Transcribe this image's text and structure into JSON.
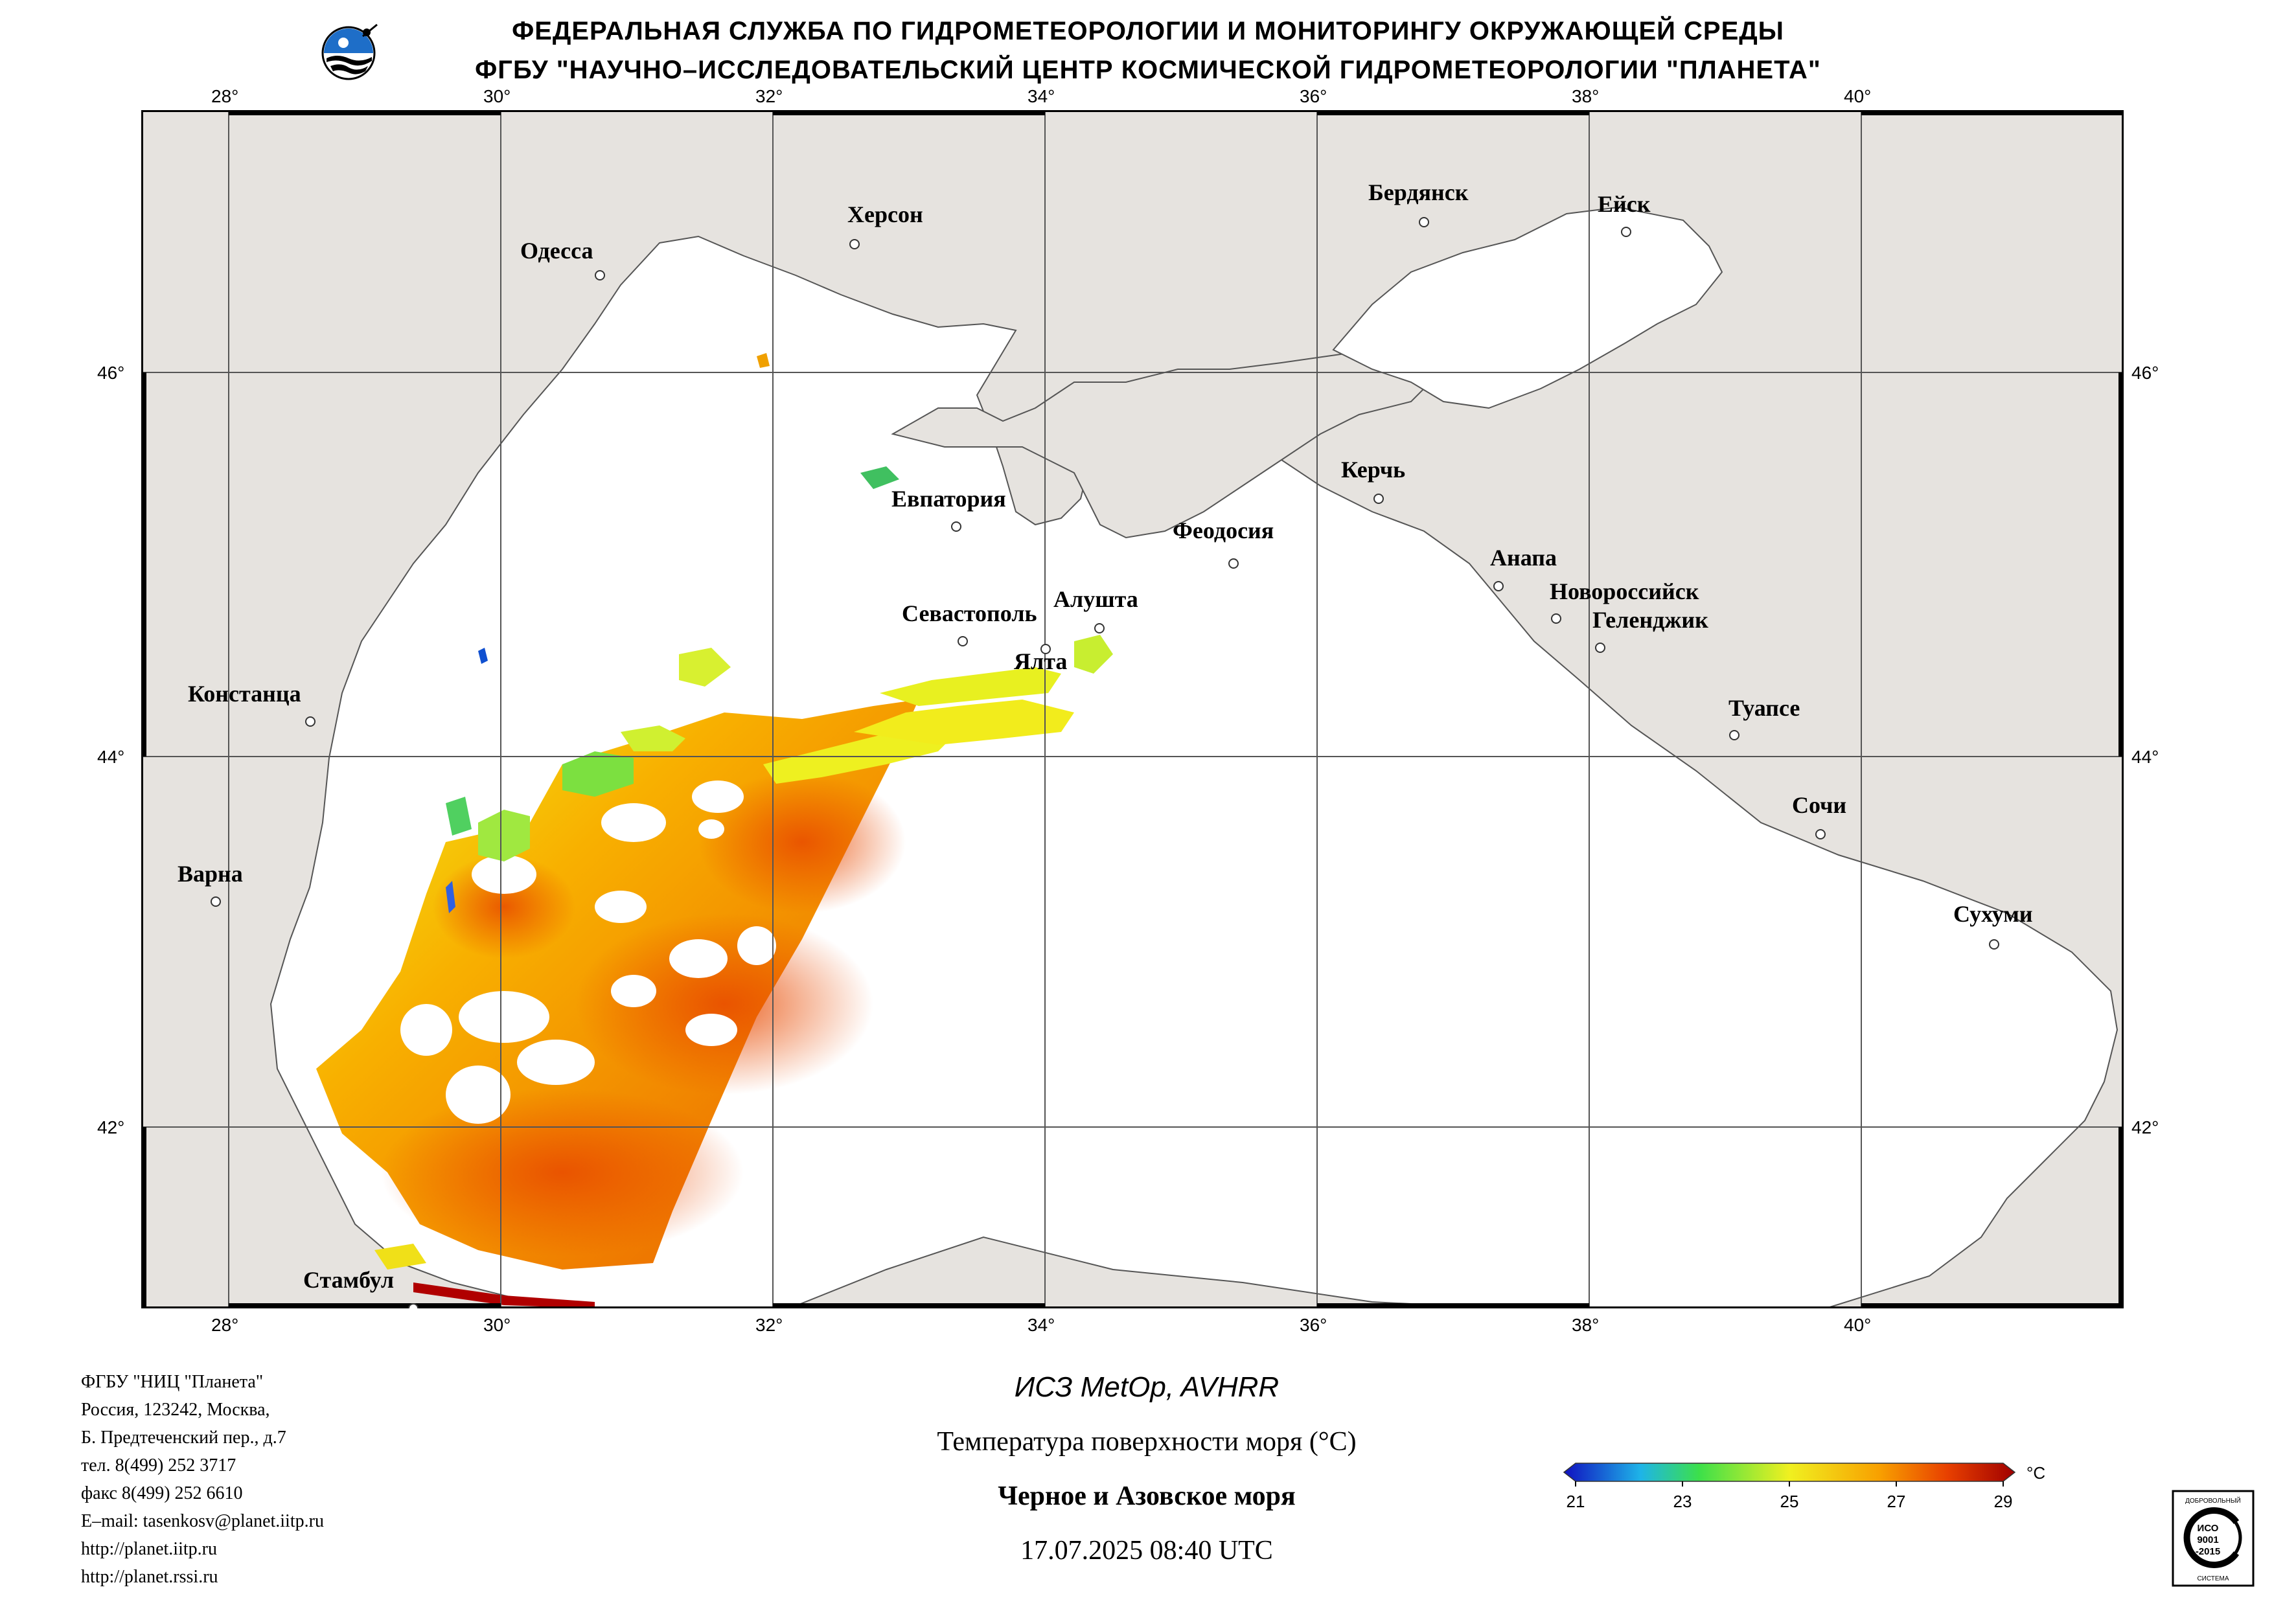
{
  "header": {
    "line1": "ФЕДЕРАЛЬНАЯ СЛУЖБА ПО ГИДРОМЕТЕОРОЛОГИИ И МОНИТОРИНГУ ОКРУЖАЮЩЕЙ СРЕДЫ",
    "line2": "ФГБУ \"НАУЧНО–ИССЛЕДОВАТЕЛЬСКИЙ ЦЕНТР КОСМИЧЕСКОЙ ГИДРОМЕТЕОРОЛОГИИ \"ПЛАНЕТА\""
  },
  "map": {
    "lon_labels": [
      "28°",
      "30°",
      "32°",
      "34°",
      "36°",
      "38°",
      "40°"
    ],
    "lat_labels": [
      "46°",
      "44°",
      "42°"
    ],
    "cities": [
      "Одесса",
      "Херсон",
      "Бердянск",
      "Ейск",
      "Евпатория",
      "Керчь",
      "Феодосия",
      "Анапа",
      "Новороссийск",
      "Геленджик",
      "Севастополь",
      "Алушта",
      "Ялта",
      "Констанца",
      "Туапсе",
      "Сочи",
      "Варна",
      "Сухуми",
      "Стамбул"
    ],
    "land_color": "#e6e3df",
    "sea_color": "#ffffff"
  },
  "footer": {
    "org_lines": [
      "ФГБУ \"НИЦ \"Планета\"",
      "Россия, 123242, Москва,",
      "Б. Предтеченский пер., д.7",
      "тел. 8(499) 252 3717",
      "факс 8(499) 252 6610",
      "E–mail: tasenkosv@planet.iitp.ru",
      "http://planet.iitp.ru",
      "http://planet.rssi.ru"
    ],
    "satellite": "ИСЗ MetOp, AVHRR",
    "product": "Температура поверхности моря (°C)",
    "region": "Черное и Азовское моря",
    "datetime": "17.07.2025 08:40 UTC"
  },
  "legend": {
    "unit": "°C",
    "ticks": [
      "21",
      "23",
      "25",
      "27",
      "29"
    ],
    "min": 21,
    "max": 29,
    "colors": [
      "#1010c0",
      "#1eb4e8",
      "#3ce04a",
      "#f0f020",
      "#f8a000",
      "#e84000",
      "#a00000"
    ]
  },
  "iso": {
    "top_text": "ДОБРОВОЛЬНЫЙ",
    "main_text": "ИСО",
    "std_text": "9001",
    "year_text": "-2015",
    "bottom_text": "СИСТЕМА"
  }
}
